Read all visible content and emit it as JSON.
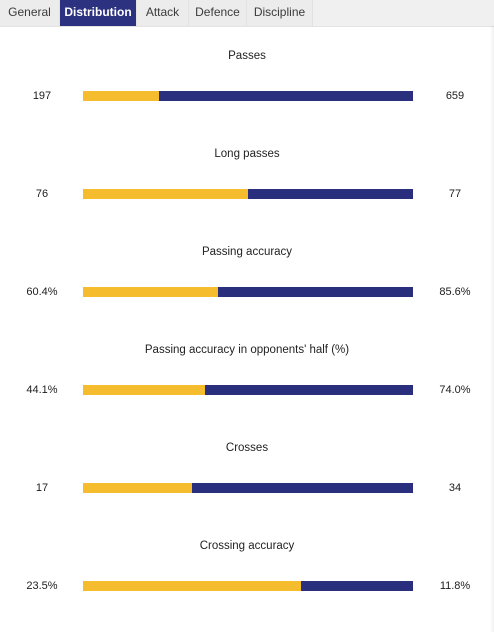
{
  "tabs": [
    {
      "label": "General",
      "active": false
    },
    {
      "label": "Distribution",
      "active": true
    },
    {
      "label": "Attack",
      "active": false
    },
    {
      "label": "Defence",
      "active": false
    },
    {
      "label": "Discipline",
      "active": false
    }
  ],
  "colors": {
    "active_tab": "#2d3280",
    "home_bar": "#f5bc2e",
    "away_bar": "#2a2f7d"
  },
  "stats": [
    {
      "title": "Passes",
      "home": "197",
      "away": "659",
      "home_share": 0.23
    },
    {
      "title": "Long passes",
      "home": "76",
      "away": "77",
      "home_share": 0.5
    },
    {
      "title": "Passing accuracy",
      "home": "60.4%",
      "away": "85.6%",
      "home_share": 0.41
    },
    {
      "title": "Passing accuracy in opponents' half (%)",
      "home": "44.1%",
      "away": "74.0%",
      "home_share": 0.37
    },
    {
      "title": "Crosses",
      "home": "17",
      "away": "34",
      "home_share": 0.33
    },
    {
      "title": "Crossing accuracy",
      "home": "23.5%",
      "away": "11.8%",
      "home_share": 0.66
    }
  ]
}
